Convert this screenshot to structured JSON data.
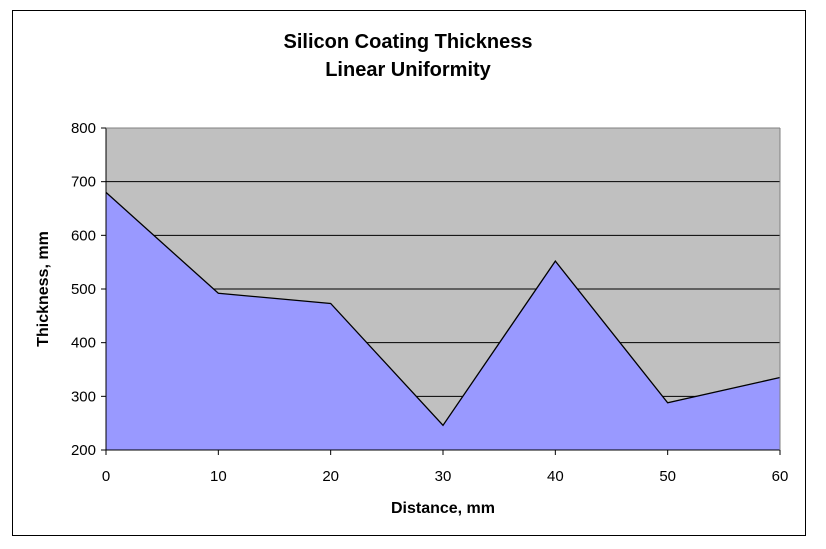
{
  "chart_data": {
    "type": "area",
    "title": [
      "Silicon Coating  Thickness",
      "Linear Uniformity"
    ],
    "xlabel": "Distance, mm",
    "ylabel": "Thickness, mm",
    "x": [
      0,
      10,
      20,
      30,
      40,
      50,
      60
    ],
    "x_ticks": [
      "0",
      "10",
      "20",
      "30",
      "40",
      "50",
      "60"
    ],
    "y_ticks": [
      "800",
      "700",
      "600",
      "500",
      "400",
      "300",
      "200"
    ],
    "xlim": [
      0,
      60
    ],
    "ylim": [
      200,
      800
    ],
    "grid": true,
    "legend": "none",
    "series": [
      {
        "values": [
          680,
          492,
          473,
          246,
          552,
          288,
          335
        ]
      }
    ],
    "colors": {
      "plot_background": "#c0c0c0",
      "area_fill": "#9999ff",
      "line": "#000000",
      "gridline": "#000000"
    }
  }
}
